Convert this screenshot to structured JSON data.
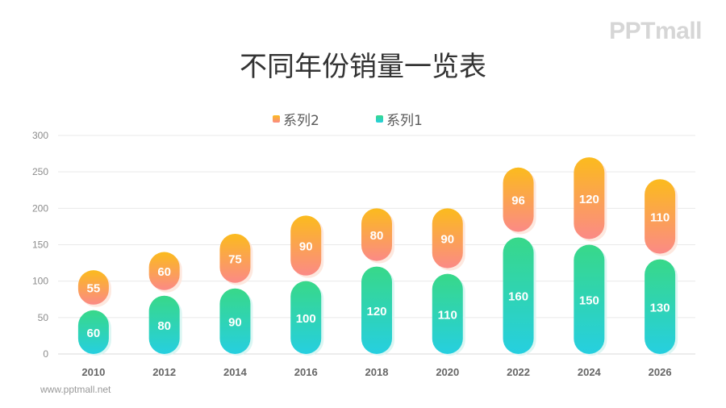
{
  "header": {
    "title": "不同年份销量一览表",
    "logo_text": "PPTmall"
  },
  "footer": {
    "url": "www.pptmall.net"
  },
  "colors": {
    "series1_top": "#38d889",
    "series1_bottom": "#26cfe0",
    "series2_top": "#fbbb1d",
    "series2_bottom": "#fb8a86",
    "grid": "#e9e9e9",
    "axis_text": "#8c8c8c"
  },
  "chart_data": {
    "type": "bar",
    "stacked": true,
    "categories": [
      "2010",
      "2012",
      "2014",
      "2016",
      "2018",
      "2020",
      "2022",
      "2024",
      "2026"
    ],
    "series": [
      {
        "name": "系列1",
        "values": [
          60,
          80,
          90,
          100,
          120,
          110,
          160,
          150,
          130
        ]
      },
      {
        "name": "系列2",
        "values": [
          55,
          60,
          75,
          90,
          80,
          90,
          96,
          120,
          110
        ]
      }
    ],
    "y_ticks": [
      "0",
      "50",
      "100",
      "150",
      "200",
      "250",
      "300"
    ],
    "ylim": [
      0,
      300
    ],
    "grid": true,
    "legend_position": "top",
    "legend_order": [
      "系列2",
      "系列1"
    ],
    "title": "不同年份销量一览表",
    "xlabel": "",
    "ylabel": ""
  }
}
